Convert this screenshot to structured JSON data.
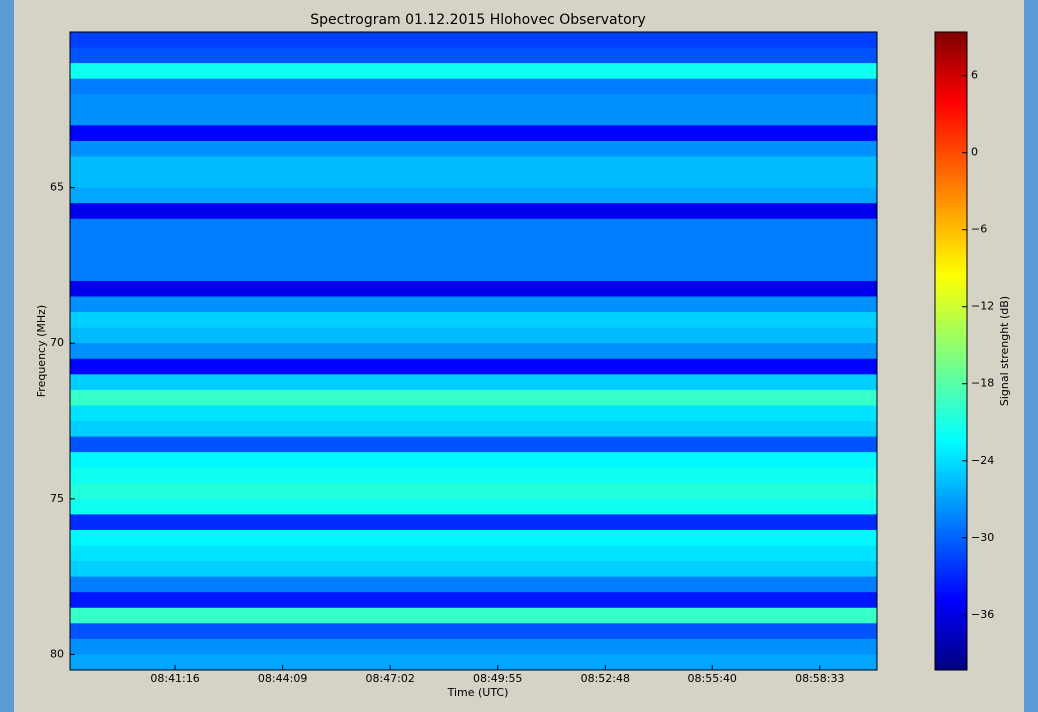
{
  "chart_data": {
    "type": "spectrogram",
    "title": "Spectrogram 01.12.2015 Hlohovec Observatory",
    "x_label": "Time (UTC)",
    "y_label": "Frequency (MHz)",
    "colorbar_label": "Signal strenght (dB)",
    "colormap": "jet",
    "y": [
      60.25,
      60.75,
      61.25,
      61.75,
      62.25,
      62.75,
      63.25,
      63.75,
      64.25,
      64.75,
      65.25,
      65.75,
      66.25,
      66.75,
      67.25,
      67.75,
      68.25,
      68.75,
      69.25,
      69.75,
      70.25,
      70.75,
      71.25,
      71.75,
      72.25,
      72.75,
      73.25,
      73.75,
      74.25,
      74.75,
      75.25,
      75.75,
      76.25,
      76.75,
      77.25,
      77.75,
      78.25,
      78.75,
      79.25,
      79.75,
      80.25
    ],
    "values": [
      -31,
      -30,
      -21,
      -28,
      -27,
      -27,
      -34,
      -27,
      -25,
      -25,
      -26,
      -35,
      -28,
      -28,
      -28,
      -28,
      -35,
      -27,
      -24,
      -25,
      -27,
      -34,
      -24,
      -19,
      -23,
      -24,
      -30,
      -22,
      -21,
      -20,
      -21,
      -32,
      -22,
      -23,
      -24,
      -28,
      -33,
      -19,
      -30,
      -27,
      -26
    ],
    "xlim": [
      31107,
      32405
    ],
    "xticks": [
      {
        "value": 31276,
        "label": "08:41:16"
      },
      {
        "value": 31449,
        "label": "08:44:09"
      },
      {
        "value": 31622,
        "label": "08:47:02"
      },
      {
        "value": 31795,
        "label": "08:49:55"
      },
      {
        "value": 31968,
        "label": "08:52:48"
      },
      {
        "value": 32140,
        "label": "08:55:40"
      },
      {
        "value": 32313,
        "label": "08:58:33"
      }
    ],
    "ylim": [
      80.5,
      60
    ],
    "yticks": [
      65,
      70,
      75,
      80
    ],
    "clim": [
      -40.3,
      9.4
    ],
    "cticks": [
      {
        "value": -36,
        "label": "−36"
      },
      {
        "value": -30,
        "label": "−30"
      },
      {
        "value": -24,
        "label": "−24"
      },
      {
        "value": -18,
        "label": "−18"
      },
      {
        "value": -12,
        "label": "−12"
      },
      {
        "value": -6,
        "label": "−6"
      },
      0,
      6
    ]
  }
}
